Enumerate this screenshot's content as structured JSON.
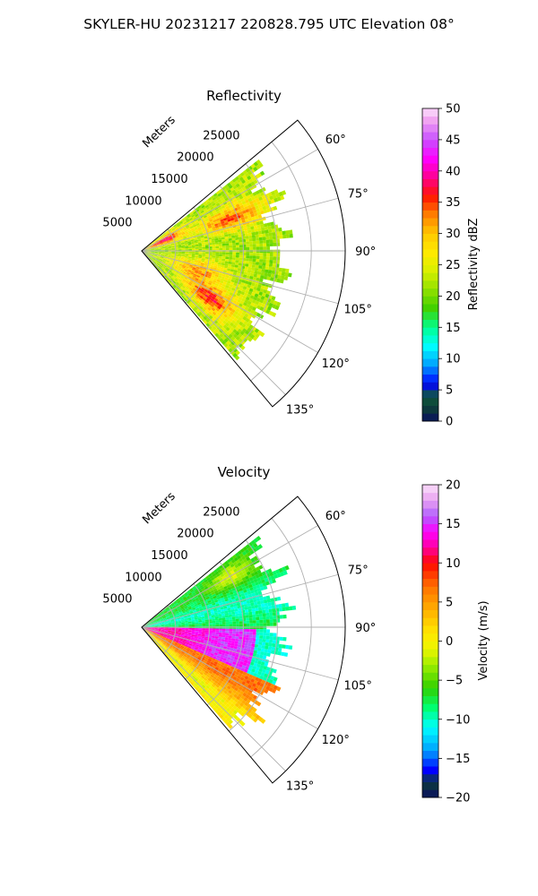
{
  "figure": {
    "suptitle": "SKYLER-HU  20231217  220828.795 UTC Elevation 08°"
  },
  "chart_data": [
    {
      "type": "heatmap",
      "projection": "polar-sector",
      "title": "Reflectivity",
      "range_axis_label": "Meters",
      "range_ticks": [
        5000,
        10000,
        15000,
        20000,
        25000
      ],
      "range_tick_labels": [
        "5000",
        "10000",
        "15000",
        "20000",
        "25000"
      ],
      "rlim": [
        0,
        30000
      ],
      "azimuth_range_deg": [
        50,
        140
      ],
      "azimuth_ticks_deg": [
        60,
        75,
        90,
        105,
        120,
        135
      ],
      "azimuth_tick_labels": [
        "60°",
        "75°",
        "90°",
        "105°",
        "120°",
        "135°"
      ],
      "grid": true,
      "data_extent": {
        "azimuth_deg": [
          52,
          138
        ],
        "max_range_m": 23500
      },
      "field_description": "Mostly 20-30 dBZ echoes across the sector, with 35-45 dBZ cores near the radar (azimuth 60-75°) and near azimuth 120-130°",
      "colorbar": {
        "label": "Reflectivity dBZ",
        "min": 0,
        "max": 50,
        "ticks": [
          0,
          5,
          10,
          15,
          20,
          25,
          30,
          35,
          40,
          45,
          50
        ],
        "tick_labels": [
          "0",
          "5",
          "10",
          "15",
          "20",
          "25",
          "30",
          "35",
          "40",
          "45",
          "50"
        ],
        "colormap_stops": [
          {
            "v": 0,
            "c": "#0a1060"
          },
          {
            "v": 2,
            "c": "#0d3b3a"
          },
          {
            "v": 4,
            "c": "#0f5a3a"
          },
          {
            "v": 6,
            "c": "#0000ff"
          },
          {
            "v": 9,
            "c": "#00a0ff"
          },
          {
            "v": 12,
            "c": "#00ffff"
          },
          {
            "v": 15,
            "c": "#00ff90"
          },
          {
            "v": 18,
            "c": "#40d000"
          },
          {
            "v": 21,
            "c": "#90e000"
          },
          {
            "v": 24,
            "c": "#d8f000"
          },
          {
            "v": 27,
            "c": "#ffea00"
          },
          {
            "v": 30,
            "c": "#ffc800"
          },
          {
            "v": 33,
            "c": "#ff8000"
          },
          {
            "v": 36,
            "c": "#ff1500"
          },
          {
            "v": 39,
            "c": "#ff0090"
          },
          {
            "v": 42,
            "c": "#ff00ff"
          },
          {
            "v": 45,
            "c": "#c850ff"
          },
          {
            "v": 48,
            "c": "#f0a0f0"
          },
          {
            "v": 50,
            "c": "#fbe0fb"
          }
        ]
      }
    },
    {
      "type": "heatmap",
      "projection": "polar-sector",
      "title": "Velocity",
      "range_axis_label": "Meters",
      "range_ticks": [
        5000,
        10000,
        15000,
        20000,
        25000
      ],
      "range_tick_labels": [
        "5000",
        "10000",
        "15000",
        "20000",
        "25000"
      ],
      "rlim": [
        0,
        30000
      ],
      "azimuth_range_deg": [
        50,
        140
      ],
      "azimuth_ticks_deg": [
        60,
        75,
        90,
        105,
        120,
        135
      ],
      "azimuth_tick_labels": [
        "60°",
        "75°",
        "90°",
        "105°",
        "120°",
        "135°"
      ],
      "grid": true,
      "data_extent": {
        "azimuth_deg": [
          52,
          138
        ],
        "max_range_m": 23500
      },
      "field_description": "Inbound (-5 to -12 m/s) flow at azimuth 60-95°, strong outbound (10-15 m/s) band near azimuth 90-110°, 0 to 8 m/s over azimuth 110-138°",
      "colorbar": {
        "label": "Velocity (m/s)",
        "min": -20,
        "max": 20,
        "ticks": [
          -20,
          -15,
          -10,
          -5,
          0,
          5,
          10,
          15,
          20
        ],
        "tick_labels": [
          "−20",
          "−15",
          "−10",
          "−5",
          "0",
          "5",
          "10",
          "15",
          "20"
        ],
        "colormap_stops": [
          {
            "v": -20,
            "c": "#0a1060"
          },
          {
            "v": -18,
            "c": "#0d3b3a"
          },
          {
            "v": -16.5,
            "c": "#0000ff"
          },
          {
            "v": -14,
            "c": "#00a0ff"
          },
          {
            "v": -11,
            "c": "#00ffff"
          },
          {
            "v": -8.5,
            "c": "#00ff70"
          },
          {
            "v": -6,
            "c": "#30d000"
          },
          {
            "v": -3,
            "c": "#a0ee00"
          },
          {
            "v": -1,
            "c": "#ecf500"
          },
          {
            "v": 1,
            "c": "#ffe800"
          },
          {
            "v": 4,
            "c": "#ffb000"
          },
          {
            "v": 7,
            "c": "#ff7000"
          },
          {
            "v": 10,
            "c": "#ff0800"
          },
          {
            "v": 12,
            "c": "#ff00a0"
          },
          {
            "v": 14,
            "c": "#ff00ff"
          },
          {
            "v": 16,
            "c": "#b060ff"
          },
          {
            "v": 18,
            "c": "#e8a0f0"
          },
          {
            "v": 20,
            "c": "#fbe0fb"
          }
        ]
      }
    }
  ]
}
